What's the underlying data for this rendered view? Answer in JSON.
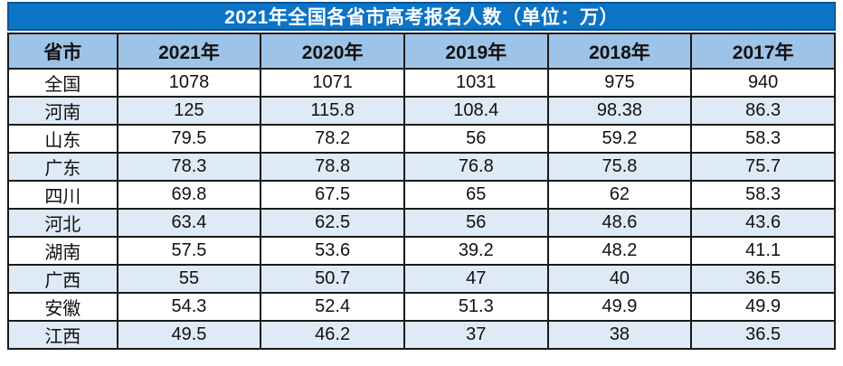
{
  "title_bar": {
    "text": "2021年全国各省市高考报名人数（单位：万）"
  },
  "colors": {
    "title_bg": "#0D73C5",
    "title_border": "#0A5596",
    "title_text": "#FFFFFF",
    "header_bg": "#9DC3E6",
    "row_alt_bg": "#DEEAF6",
    "row_bg": "#FFFFFF",
    "grid_border": "#1A1A1A",
    "cell_text": "#111111"
  },
  "chart_data": {
    "type": "table",
    "title": "2021年全国各省市高考报名人数（单位：万）",
    "unit": "万",
    "columns": [
      "省市",
      "2021年",
      "2020年",
      "2019年",
      "2018年",
      "2017年"
    ],
    "rows": [
      [
        "全国",
        1078,
        1071,
        1031,
        975,
        940
      ],
      [
        "河南",
        125,
        115.8,
        108.4,
        98.38,
        86.3
      ],
      [
        "山东",
        79.5,
        78.2,
        56,
        59.2,
        58.3
      ],
      [
        "广东",
        78.3,
        78.8,
        76.8,
        75.8,
        75.7
      ],
      [
        "四川",
        69.8,
        67.5,
        65,
        62,
        58.3
      ],
      [
        "河北",
        63.4,
        62.5,
        56,
        48.6,
        43.6
      ],
      [
        "湖南",
        57.5,
        53.6,
        39.2,
        48.2,
        41.1
      ],
      [
        "广西",
        55,
        50.7,
        47,
        40,
        36.5
      ],
      [
        "安徽",
        54.3,
        52.4,
        51.3,
        49.9,
        49.9
      ],
      [
        "江西",
        49.5,
        46.2,
        37,
        38,
        36.5
      ]
    ]
  }
}
